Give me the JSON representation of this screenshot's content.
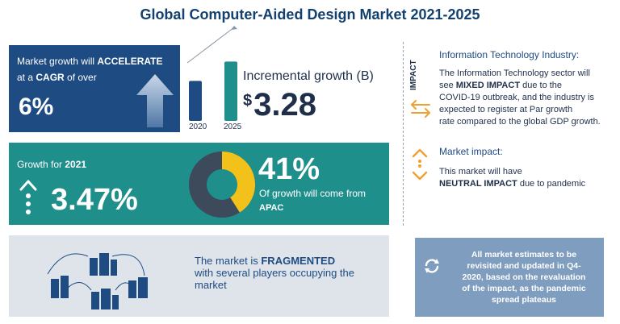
{
  "title": "Global Computer-Aided Design Market 2021-2025",
  "acceleration": {
    "line1_prefix": "Market growth will ",
    "line1_bold": "ACCELERATE",
    "line2_prefix": "at a ",
    "line2_bold": "CAGR",
    "line2_suffix": " of over",
    "value": "6%"
  },
  "bars": {
    "label_a": "2020",
    "label_b": "2025",
    "value_a": 0.62,
    "value_b": 0.92
  },
  "incremental": {
    "label": "Incremental growth (B)",
    "currency": "$",
    "value": "3.28"
  },
  "growth": {
    "label_prefix": "Growth for ",
    "label_year": "2021",
    "value": "3.47%"
  },
  "apac": {
    "percent": "41%",
    "text": "Of growth will come from",
    "region": "APAC",
    "share": 0.41
  },
  "fragmented": {
    "line1_prefix": "The market is ",
    "line1_bold": "FRAGMENTED",
    "line2": "with several players occupying the",
    "line3": "market"
  },
  "impact": {
    "vertical_label": "IMPACT",
    "it_title": "Information Technology Industry:",
    "it_line1": "The Information Technology sector will",
    "it_line2_prefix": "see ",
    "it_line2_bold": "MIXED IMPACT",
    "it_line2_suffix": " due to the",
    "it_line3": "COVID-19 outbreak, and the industry is",
    "it_line4": "expected to register at Par growth",
    "it_line5": "rate compared to the global GDP growth.",
    "mi_title": "Market impact:",
    "mi_line1": "This market will have",
    "mi_line2_bold": "NEUTRAL IMPACT",
    "mi_line2_suffix": " due to pandemic"
  },
  "note": {
    "line1": "All market estimates to be",
    "line2": "revisited and updated in Q4-",
    "line3": "2020, based on the revaluation",
    "line4": "of the impact, as the pandemic",
    "line5": "spread plateaus"
  },
  "colors": {
    "navy": "#1d4b82",
    "teal": "#1f8f8c",
    "orange": "#f0a030",
    "yellow": "#f2c21b",
    "gray_panel": "#dfe4ea",
    "note_panel": "#7f9dbf"
  }
}
